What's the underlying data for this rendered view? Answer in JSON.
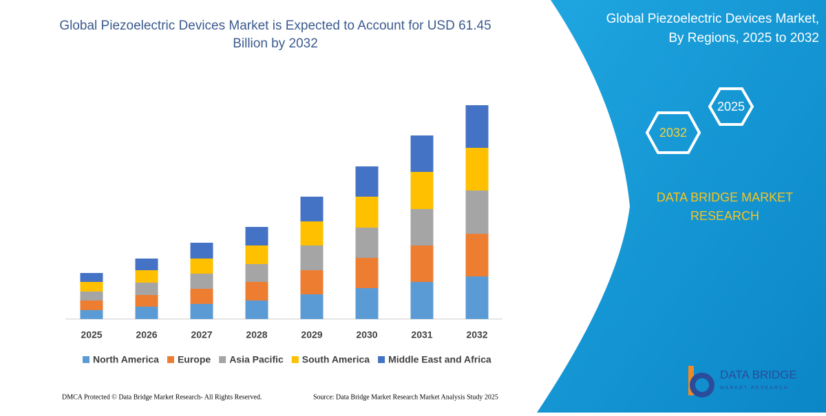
{
  "chart_data": {
    "type": "bar",
    "stacked": true,
    "title": "Global Piezoelectric Devices Market is Expected to Account for USD 61.45",
    "title_line2": "Billion by 2032",
    "categories": [
      "2025",
      "2026",
      "2027",
      "2028",
      "2029",
      "2030",
      "2031",
      "2032"
    ],
    "series": [
      {
        "name": "North America",
        "color": "#5b9bd5",
        "values": [
          13,
          18,
          22,
          27,
          36,
          45,
          54,
          62
        ]
      },
      {
        "name": "Europe",
        "color": "#ed7d31",
        "values": [
          14,
          17,
          22,
          27,
          35,
          44,
          53,
          62
        ]
      },
      {
        "name": "Asia Pacific",
        "color": "#a5a5a5",
        "values": [
          13,
          18,
          22,
          26,
          36,
          44,
          53,
          63
        ]
      },
      {
        "name": "South America",
        "color": "#ffc000",
        "values": [
          14,
          18,
          22,
          27,
          35,
          45,
          54,
          62
        ]
      },
      {
        "name": "Middle East and Africa",
        "color": "#4472c4",
        "values": [
          13,
          17,
          23,
          27,
          36,
          44,
          53,
          62
        ]
      }
    ]
  },
  "panel": {
    "title_line1": "Global Piezoelectric Devices Market,",
    "title_line2": "By Regions, 2025 to 2032",
    "hex_top": "2025",
    "hex_bottom": "2032",
    "brand_line1": "DATA BRIDGE MARKET",
    "brand_line2": "RESEARCH",
    "logo_name": "DATA BRIDGE",
    "logo_sub": "MARKET RESEARCH"
  },
  "footer": {
    "left": "DMCA Protected © Data Bridge Market Research-  All Rights Reserved.",
    "right": "Source: Data Bridge Market Research  Market Analysis Study 2025"
  }
}
